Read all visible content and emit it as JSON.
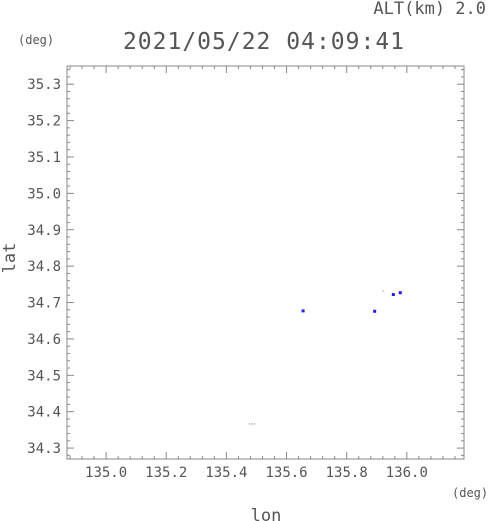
{
  "header": {
    "alt_label": "ALT(km) 2.0",
    "timestamp": "2021/05/22 04:09:41"
  },
  "chart_data": {
    "type": "scatter",
    "title": "2021/05/22 04:09:41",
    "subtitle": "ALT(km) 2.0",
    "xlabel": "lon",
    "ylabel": "lat",
    "x_unit": "(deg)",
    "y_unit": "(deg)",
    "xlim": [
      134.87,
      136.19
    ],
    "ylim": [
      34.27,
      35.35
    ],
    "x_ticks": [
      135.0,
      135.2,
      135.4,
      135.6,
      135.8,
      136.0
    ],
    "x_tick_labels": [
      "135.0",
      "135.2",
      "135.4",
      "135.6",
      "135.8",
      "136.0"
    ],
    "y_ticks": [
      34.3,
      34.4,
      34.5,
      34.6,
      34.7,
      34.8,
      34.9,
      35.0,
      35.1,
      35.2,
      35.3
    ],
    "y_tick_labels": [
      "34.3",
      "34.4",
      "34.5",
      "34.6",
      "34.7",
      "34.8",
      "34.9",
      "35.0",
      "35.1",
      "35.2",
      "35.3"
    ],
    "grid": false,
    "series": [
      {
        "color": "#1e1ee6",
        "points": [
          {
            "x": 135.655,
            "y": 34.677
          },
          {
            "x": 135.893,
            "y": 34.676
          },
          {
            "x": 135.955,
            "y": 34.722
          },
          {
            "x": 135.978,
            "y": 34.727
          }
        ]
      },
      {
        "color": "#bbbbbb",
        "points": [
          {
            "x": 135.477,
            "y": 34.367
          },
          {
            "x": 135.485,
            "y": 34.367
          },
          {
            "x": 135.493,
            "y": 34.367
          },
          {
            "x": 135.921,
            "y": 34.733
          }
        ]
      }
    ]
  }
}
